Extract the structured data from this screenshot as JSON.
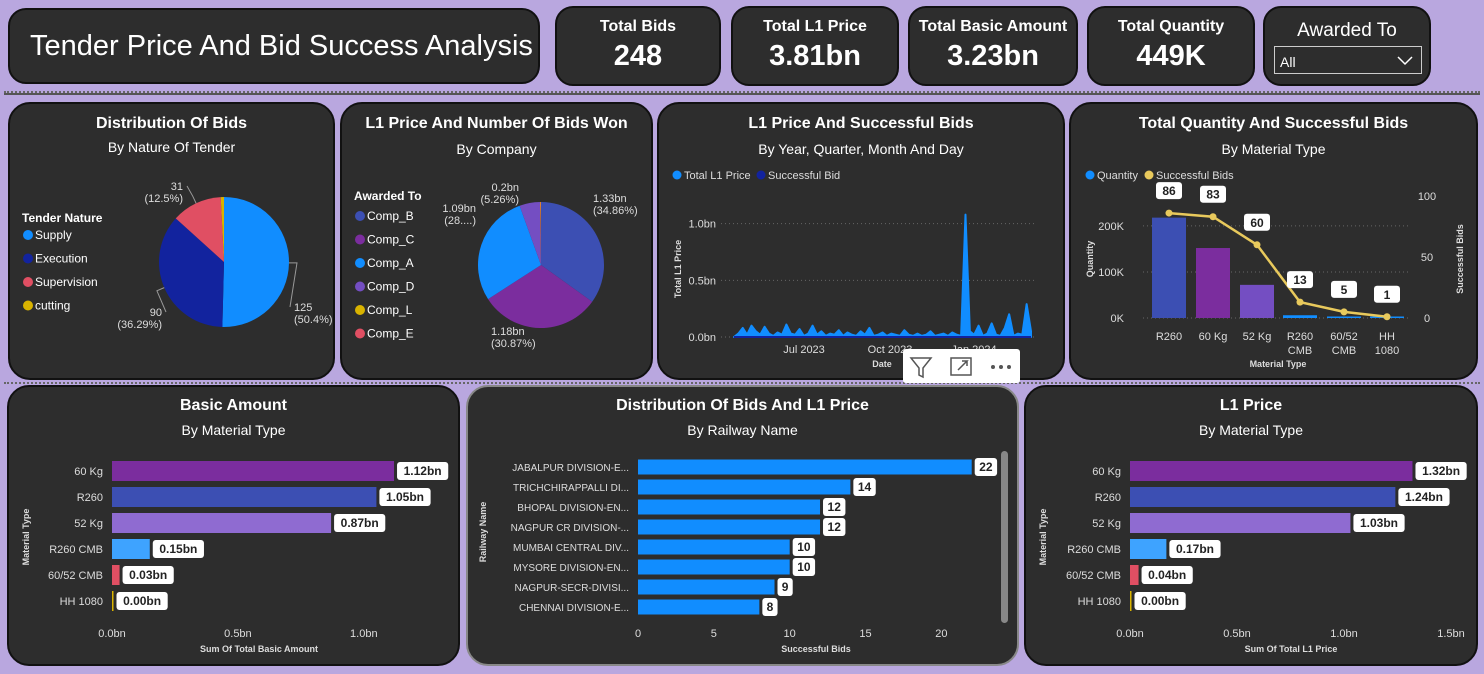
{
  "header": {
    "title": "Tender Price And Bid Success Analysis",
    "kpis": [
      {
        "label": "Total Bids",
        "value": "248"
      },
      {
        "label": "Total L1 Price",
        "value": "3.81bn"
      },
      {
        "label": "Total Basic Amount",
        "value": "3.23bn"
      },
      {
        "label": "Total Quantity",
        "value": "449K"
      }
    ],
    "slicer": {
      "label": "Awarded To",
      "value": "All"
    }
  },
  "visual_toolbar": {
    "icons": [
      "filter-icon",
      "focus-mode-icon",
      "more-options-icon"
    ]
  },
  "colors": {
    "blue": "#118dff",
    "navy": "#12239e",
    "red": "#e04f63",
    "gold": "#d9b300",
    "purple": "#744ec2",
    "violet": "#7b2d9e",
    "slate": "#3c4fb3",
    "lavender": "#8f6bd1",
    "light_blue": "#3ea3ff",
    "yellow_line": "#e8c95c"
  },
  "chart_data": [
    {
      "id": "nature",
      "type": "pie",
      "title": "Distribution Of Bids",
      "subtitle": "By Nature Of Tender",
      "legend_title": "Tender Nature",
      "categories": [
        "Supply",
        "Execution",
        "Supervision",
        "cutting"
      ],
      "values": [
        125,
        90,
        31,
        2
      ],
      "labels": [
        {
          "l1": "125",
          "l2": "(50.4%)"
        },
        {
          "l1": "90",
          "l2": "(36.29%)"
        },
        {
          "l1": "31",
          "l2": "(12.5%)"
        }
      ]
    },
    {
      "id": "company",
      "type": "pie",
      "title": "L1 Price And Number Of Bids Won",
      "subtitle": "By Company",
      "legend_title": "Awarded To",
      "categories": [
        "Comp_B",
        "Comp_C",
        "Comp_A",
        "Comp_D",
        "Comp_L",
        "Comp_E"
      ],
      "values": [
        1.33,
        1.18,
        1.09,
        0.2,
        0.005,
        0.005
      ],
      "labels": [
        {
          "l1": "1.33bn",
          "l2": "(34.86%)"
        },
        {
          "l1": "1.18bn",
          "l2": "(30.87%)"
        },
        {
          "l1": "1.09bn",
          "l2": "(28....)"
        },
        {
          "l1": "0.2bn",
          "l2": "(5.26%)"
        }
      ]
    },
    {
      "id": "timeline",
      "type": "area",
      "title": "L1 Price And Successful Bids",
      "subtitle": "By Year, Quarter, Month And Day",
      "series": [
        {
          "name": "Total L1 Price"
        },
        {
          "name": "Successful Bid"
        }
      ],
      "ylabel": "Total L1 Price",
      "xlabel": "Date",
      "yticks": [
        "1.0bn",
        "0.5bn",
        "0.0bn"
      ],
      "xticks": [
        "Jul 2023",
        "Oct 2023",
        "Jan 2024"
      ],
      "ylim": [
        0,
        1.2
      ],
      "values": [
        0,
        0.03,
        0.08,
        0.02,
        0.1,
        0.05,
        0.02,
        0.09,
        0.03,
        0.01,
        0.04,
        0.02,
        0.11,
        0.03,
        0.02,
        0.07,
        0.01,
        0.03,
        0.1,
        0.02,
        0.05,
        0.01,
        0.03,
        0.02,
        0.06,
        0.01,
        0.04,
        0.02,
        0.01,
        0.05,
        0.02,
        0.08,
        0.01,
        0.02,
        0.04,
        0.01,
        0.03,
        0.02,
        0.01,
        0.06,
        0.02,
        0.01,
        0.03,
        0.01,
        0.02,
        0.05,
        0.01,
        0.02,
        0.03,
        0.01,
        0.04,
        0.02,
        0.01,
        1.08,
        0.05,
        0.02,
        0.1,
        0.01,
        0.03,
        0.12,
        0.02,
        0.01,
        0.08,
        0.2,
        0.01,
        0.03,
        0.02,
        0.29,
        0.05
      ]
    },
    {
      "id": "quantity",
      "type": "bar",
      "title": "Total Quantity And Successful Bids",
      "subtitle": "By Material Type",
      "series": [
        {
          "name": "Quantity"
        },
        {
          "name": "Successful Bids"
        }
      ],
      "xlabel": "Material Type",
      "ylabel": "Quantity",
      "y2label": "Successful Bids",
      "categories": [
        [
          "R260"
        ],
        [
          "60 Kg"
        ],
        [
          "52 Kg"
        ],
        [
          "R260",
          "CMB"
        ],
        [
          "60/52",
          "CMB"
        ],
        [
          "HH",
          "1080"
        ]
      ],
      "quantity": [
        218000,
        152000,
        72000,
        6000,
        2000,
        200
      ],
      "bids": [
        86,
        83,
        60,
        13,
        5,
        1
      ],
      "yticks": [
        "200K",
        "100K",
        "0K"
      ],
      "y2ticks": [
        "100",
        "50",
        "0"
      ],
      "ylim": [
        0,
        265000
      ],
      "y2lim": [
        0,
        100
      ]
    },
    {
      "id": "basic",
      "type": "bar",
      "title": "Basic Amount",
      "subtitle": "By Material Type",
      "categories": [
        "60 Kg",
        "R260",
        "52 Kg",
        "R260 CMB",
        "60/52 CMB",
        "HH 1080"
      ],
      "values": [
        1.12,
        1.05,
        0.87,
        0.15,
        0.03,
        0.0
      ],
      "value_labels": [
        "1.12bn",
        "1.05bn",
        "0.87bn",
        "0.15bn",
        "0.03bn",
        "0.00bn"
      ],
      "xticks": [
        "0.0bn",
        "0.5bn",
        "1.0bn"
      ],
      "xlabel": "Sum Of Total Basic Amount",
      "ylabel": "Material Type",
      "xlim": [
        0,
        1.1
      ]
    },
    {
      "id": "railway",
      "type": "bar",
      "title": "Distribution Of Bids And L1 Price",
      "subtitle": "By Railway Name",
      "categories": [
        "JABALPUR DIVISION-E...",
        "TRICHCHIRAPPALLI DI...",
        "BHOPAL DIVISION-EN...",
        "NAGPUR CR DIVISION-...",
        "MUMBAI CENTRAL DIV...",
        "MYSORE DIVISION-EN...",
        "NAGPUR-SECR-DIVISI...",
        "CHENNAI DIVISION-E..."
      ],
      "values": [
        22,
        14,
        12,
        12,
        10,
        10,
        9,
        8
      ],
      "xticks": [
        "0",
        "5",
        "10",
        "15",
        "20"
      ],
      "xlabel": "Successful Bids",
      "ylabel": "Railway Name",
      "xlim": [
        0,
        23.8
      ]
    },
    {
      "id": "l1",
      "type": "bar",
      "title": "L1 Price",
      "subtitle": "By Material Type",
      "categories": [
        "60 Kg",
        "R260",
        "52 Kg",
        "R260 CMB",
        "60/52 CMB",
        "HH 1080"
      ],
      "values": [
        1.32,
        1.24,
        1.03,
        0.17,
        0.04,
        0.0
      ],
      "value_labels": [
        "1.32bn",
        "1.24bn",
        "1.03bn",
        "0.17bn",
        "0.04bn",
        "0.00bn"
      ],
      "xticks": [
        "0.0bn",
        "0.5bn",
        "1.0bn",
        "1.5bn"
      ],
      "xlabel": "Sum Of Total L1 Price",
      "ylabel": "Material Type",
      "xlim": [
        0,
        1.5
      ]
    }
  ]
}
